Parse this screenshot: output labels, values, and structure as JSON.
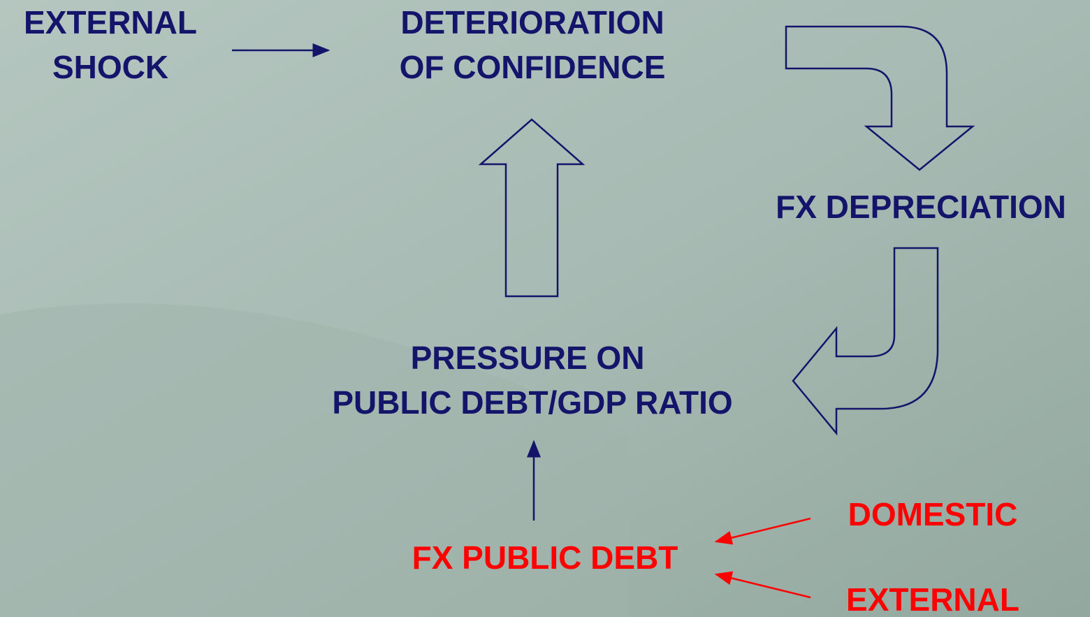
{
  "nodes": [
    {
      "lines": [
        "EXTERNAL",
        "SHOCK"
      ]
    },
    {
      "lines": [
        "DETERIORATION",
        "OF CONFIDENCE"
      ]
    },
    {
      "lines": [
        "FX DEPRECIATION"
      ]
    },
    {
      "lines": [
        "PRESSURE ON",
        "PUBLIC DEBT/GDP RATIO"
      ]
    },
    {
      "lines": [
        "FX PUBLIC DEBT"
      ]
    },
    {
      "lines": [
        "DOMESTIC"
      ]
    },
    {
      "lines": [
        "EXTERNAL"
      ]
    }
  ]
}
